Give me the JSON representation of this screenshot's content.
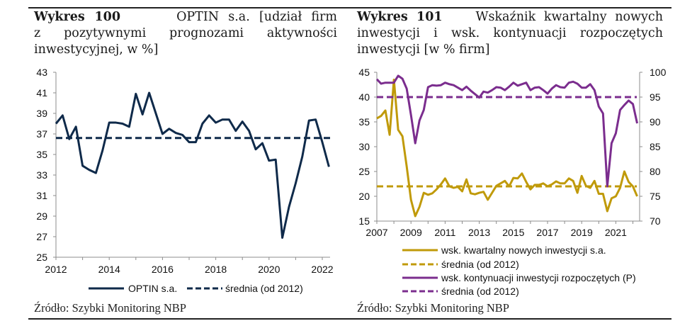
{
  "captions": {
    "left": {
      "number": "Wykres 100",
      "lines": [
        "OPTIN s.a. [udział firm",
        "z pozytywnymi prognozami aktywności",
        "inwestycyjnej, w %]"
      ]
    },
    "right": {
      "number": "Wykres 101",
      "lines": [
        "Wskaźnik kwartalny nowych",
        "inwestycji i wsk. kontynuacji rozpoczętych",
        "inwestycji [w % firm]"
      ]
    }
  },
  "sources": {
    "left": "Źródło: Szybki Monitoring NBP",
    "right": "Źródło: Szybki Monitoring NBP"
  },
  "colors": {
    "navy": "#0f2a4a",
    "gold": "#c09a0a",
    "purple": "#7b2d8e",
    "axis": "#8c8c8c"
  },
  "chart_data": [
    {
      "type": "line",
      "title": "OPTIN s.a. [udział firm z pozytywnymi prognozami aktywności inwestycyjnej, w %]",
      "xlabel": "",
      "ylabel": "",
      "x_start": "2012Q1",
      "x_frequency": "quarterly",
      "xlim": [
        2012,
        2022.3
      ],
      "x_ticks": [
        2012,
        2013,
        2014,
        2015,
        2016,
        2017,
        2018,
        2019,
        2020,
        2021,
        2022
      ],
      "x_tick_labels": [
        "2012",
        "2014",
        "2016",
        "2018",
        "2020",
        "2022"
      ],
      "ylim": [
        25,
        43
      ],
      "y_ticks": [
        25,
        27,
        29,
        31,
        33,
        35,
        37,
        39,
        41,
        43
      ],
      "grid": false,
      "legend_position": "bottom",
      "series": [
        {
          "name": "OPTIN s.a.",
          "style": "solid",
          "color": "#0f2a4a",
          "values": [
            38.0,
            38.8,
            36.5,
            37.7,
            33.9,
            33.5,
            33.2,
            35.4,
            38.1,
            38.1,
            38.0,
            37.7,
            40.9,
            38.9,
            41.0,
            39.0,
            37.0,
            37.5,
            37.1,
            36.9,
            36.2,
            36.2,
            38.0,
            38.8,
            38.1,
            38.4,
            38.4,
            37.3,
            38.2,
            37.3,
            35.5,
            36.1,
            34.4,
            34.5,
            26.9,
            29.9,
            32.2,
            34.8,
            38.3,
            38.4,
            36.2,
            33.8
          ]
        },
        {
          "name": "średnia (od 2012)",
          "style": "dashed",
          "color": "#0f2a4a",
          "constant": 36.6
        }
      ]
    },
    {
      "type": "line",
      "title": "Wskaźnik kwartalny nowych inwestycji i wsk. kontynuacji rozpoczętych inwestycji [w % firm]",
      "xlabel": "",
      "ylabel": "",
      "x_start": "2007Q1",
      "x_frequency": "quarterly",
      "xlim": [
        2007,
        2022.5
      ],
      "x_ticks": [
        2007,
        2008,
        2009,
        2010,
        2011,
        2012,
        2013,
        2014,
        2015,
        2016,
        2017,
        2018,
        2019,
        2020,
        2021,
        2022
      ],
      "x_tick_labels": [
        "2007",
        "2009",
        "2011",
        "2013",
        "2015",
        "2017",
        "2019",
        "2021"
      ],
      "ylim": [
        15,
        45
      ],
      "y_ticks": [
        15,
        20,
        25,
        30,
        35,
        40,
        45
      ],
      "y2lim": [
        70,
        100
      ],
      "y2_ticks": [
        70,
        75,
        80,
        85,
        90,
        95,
        100
      ],
      "grid": false,
      "legend_position": "bottom",
      "series": [
        {
          "name": "wsk. kwartalny nowych inwestycji s.a.",
          "style": "solid",
          "color": "#c09a0a",
          "axis": "left",
          "values": [
            35.7,
            36.2,
            37.3,
            32.4,
            43.5,
            33.4,
            32.1,
            26.0,
            19.3,
            16.0,
            17.9,
            20.7,
            20.3,
            20.6,
            21.4,
            22.4,
            23.6,
            22.0,
            21.7,
            21.9,
            21.0,
            23.4,
            20.6,
            20.4,
            20.7,
            20.9,
            19.3,
            20.7,
            22.1,
            22.6,
            23.1,
            22.0,
            23.7,
            23.6,
            24.6,
            22.9,
            21.4,
            22.3,
            22.3,
            22.6,
            22.0,
            22.4,
            23.0,
            22.6,
            22.6,
            23.6,
            23.1,
            20.7,
            24.1,
            22.1,
            21.7,
            23.1,
            20.5,
            20.5,
            17.0,
            19.6,
            20.0,
            21.7,
            25.0,
            22.9,
            22.0,
            20.0
          ]
        },
        {
          "name": "średnia (od 2012)",
          "style": "dashed",
          "color": "#c09a0a",
          "axis": "left",
          "constant": 22.0
        },
        {
          "name": "wsk. kontynuacji inwestycji rozpoczętych (P)",
          "style": "solid",
          "color": "#7b2d8e",
          "axis": "right",
          "values": [
            98.6,
            97.7,
            97.9,
            97.9,
            97.9,
            99.3,
            98.7,
            96.7,
            91.4,
            85.7,
            90.3,
            92.4,
            97.0,
            97.4,
            97.3,
            97.4,
            97.9,
            97.6,
            97.4,
            96.9,
            96.4,
            97.1,
            96.3,
            95.6,
            94.9,
            96.1,
            95.9,
            96.4,
            97.0,
            96.9,
            96.4,
            97.1,
            97.9,
            97.3,
            97.6,
            97.9,
            96.4,
            96.9,
            97.0,
            96.4,
            95.7,
            96.7,
            97.4,
            97.0,
            96.9,
            97.9,
            98.1,
            97.7,
            96.9,
            96.9,
            97.6,
            96.4,
            93.1,
            91.7,
            77.0,
            85.7,
            87.7,
            92.4,
            93.4,
            94.3,
            93.6,
            89.7
          ]
        },
        {
          "name": "średnia (od 2012)",
          "style": "dashed",
          "color": "#7b2d8e",
          "axis": "right",
          "constant": 95.0
        }
      ]
    }
  ]
}
